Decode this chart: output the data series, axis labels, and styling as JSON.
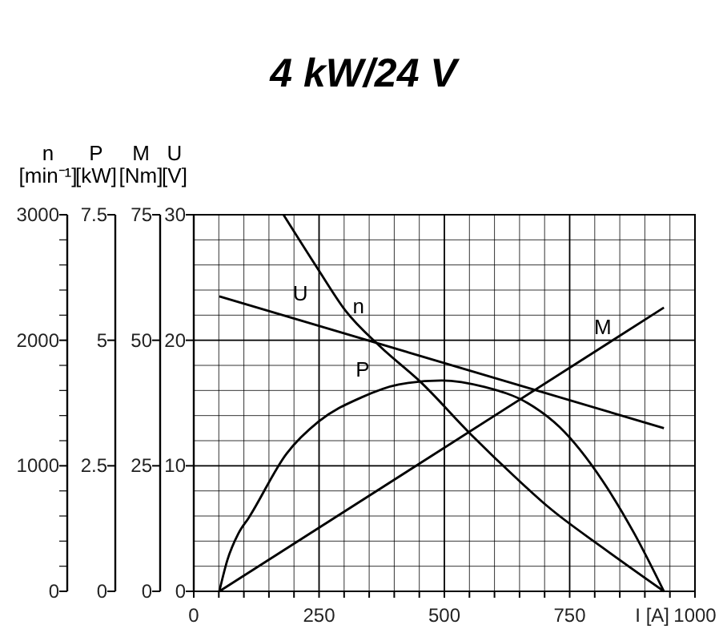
{
  "chart_data": [
    {
      "type": "line",
      "title": "4 kW/24 V",
      "xlabel": "I [A]",
      "ylabel": "n [min⁻¹]",
      "y2label": "P [kW]",
      "y3label": "M [Nm]",
      "xlim": [
        0,
        1000
      ],
      "xticks": [
        0,
        {
          "value": 50,
          "label": null
        },
        {
          "value": 100,
          "label": null
        },
        {
          "value": 150,
          "label": null
        },
        {
          "value": 200,
          "label": null
        },
        250,
        {
          "value": 300,
          "label": null
        },
        {
          "value": 350,
          "label": null
        },
        {
          "value": 400,
          "label": null
        },
        {
          "value": 450,
          "label": null
        },
        500,
        {
          "value": 550,
          "label": null
        },
        {
          "value": 600,
          "label": null
        },
        {
          "value": 650,
          "label": null
        },
        {
          "value": 700,
          "label": null
        },
        750,
        {
          "value": 800,
          "label": null
        },
        {
          "value": 850,
          "label": null
        },
        {
          "value": 900,
          "label": null
        },
        {
          "value": 950,
          "label": null
        },
        1000
      ],
      "ylim": [
        0,
        3000
      ],
      "yticks": [
        0,
        {
          "value": 200,
          "label": null
        },
        {
          "value": 400,
          "label": null
        },
        {
          "value": 600,
          "label": null
        },
        {
          "value": 800,
          "label": null
        },
        1000,
        {
          "value": 1200,
          "label": null
        },
        {
          "value": 1400,
          "label": null
        },
        {
          "value": 1600,
          "label": null
        },
        {
          "value": 1800,
          "label": null
        },
        2000,
        {
          "value": 2200,
          "label": null
        },
        {
          "value": 2400,
          "label": null
        },
        {
          "value": 2600,
          "label": null
        },
        {
          "value": 2800,
          "label": null
        },
        3000
      ],
      "y2lim": [
        0,
        7.5
      ],
      "y2ticks": [
        0,
        2.5,
        5,
        7.5
      ],
      "y3lim": [
        0,
        75
      ],
      "y3ticks": [
        0,
        25,
        50,
        75
      ],
      "grid": true,
      "marker": "none",
      "line_style": "solid",
      "series": [
        {
          "name": "n",
          "color": "#000000",
          "axis": "y",
          "x": [
            179,
            249,
            302,
            372,
            452,
            553,
            644,
            708,
            815,
            938
          ],
          "values": [
            3000,
            2560,
            2240,
            1950,
            1670,
            1250,
            900,
            670,
            350,
            0
          ]
        },
        {
          "name": "P",
          "color": "#000000",
          "axis": "y2",
          "x": [
            51,
            67,
            89,
            110,
            185,
            249,
            334,
            409,
            495,
            580,
            666,
            730,
            815,
            879,
            938
          ],
          "values": [
            0,
            0.62,
            1.15,
            1.47,
            2.74,
            3.38,
            3.86,
            4.12,
            4.2,
            4.07,
            3.75,
            3.27,
            2.21,
            1.15,
            0
          ]
        },
        {
          "name": "M",
          "color": "#000000",
          "axis": "y3",
          "x": [
            51,
            938
          ],
          "values": [
            0,
            56.5
          ]
        }
      ]
    },
    {
      "type": "line",
      "ylabel": "U [V]",
      "xlim": [
        0,
        1000
      ],
      "ylim": [
        0,
        30
      ],
      "yticks": [
        0,
        10,
        20,
        30
      ],
      "tick_labels": "y",
      "marker": "none",
      "line_style": "solid",
      "series": [
        {
          "name": "U",
          "color": "#000000",
          "x": [
            51,
            938
          ],
          "values": [
            23.5,
            13
          ]
        }
      ]
    }
  ]
}
